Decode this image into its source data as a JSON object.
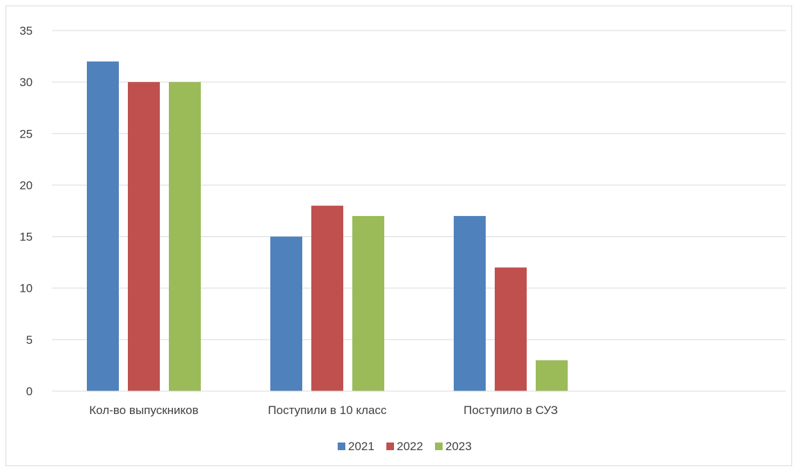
{
  "chart_data": {
    "type": "bar",
    "title": "",
    "xlabel": "",
    "ylabel": "",
    "categories": [
      "Кол-во выпускников",
      "Поступили в 10 класс",
      "Поступило в СУЗ",
      ""
    ],
    "series": [
      {
        "name": "2021",
        "color": "#4f81bd",
        "values": [
          32,
          15,
          17,
          null
        ]
      },
      {
        "name": "2022",
        "color": "#c0504d",
        "values": [
          30,
          18,
          12,
          null
        ]
      },
      {
        "name": "2023",
        "color": "#9bbb59",
        "values": [
          30,
          17,
          3,
          null
        ]
      }
    ],
    "ylim": [
      0,
      35
    ],
    "yticks": [
      0,
      5,
      10,
      15,
      20,
      25,
      30,
      35
    ],
    "grid": true,
    "legend_position": "bottom"
  }
}
